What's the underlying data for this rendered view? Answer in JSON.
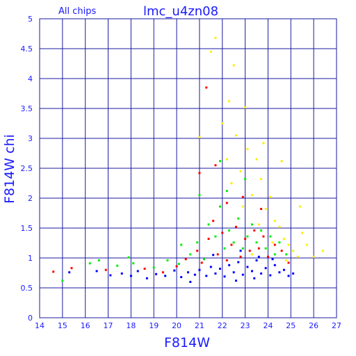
{
  "chart_data": {
    "type": "scatter",
    "title": "lmc_u4zn08",
    "subtitle": "All chips",
    "xlabel": "F814W",
    "ylabel": "F814W chi",
    "xlim": [
      14,
      27
    ],
    "ylim": [
      0,
      5
    ],
    "xticks": [
      "14",
      "15",
      "16",
      "17",
      "18",
      "19",
      "20",
      "21",
      "22",
      "23",
      "24",
      "25",
      "26",
      "27"
    ],
    "yticks": [
      "0",
      "0.5",
      "1",
      "1.5",
      "2",
      "2.5",
      "3",
      "3.5",
      "4",
      "4.5",
      "5"
    ],
    "grid": true,
    "series": [
      {
        "color": "#0000ff",
        "points": [
          [
            17.6,
            0.74
          ],
          [
            18.0,
            0.7
          ],
          [
            18.3,
            0.78
          ],
          [
            18.7,
            0.66
          ],
          [
            19.1,
            0.73
          ],
          [
            19.5,
            0.7
          ],
          [
            19.9,
            0.79
          ],
          [
            20.2,
            0.68
          ],
          [
            20.5,
            0.76
          ],
          [
            20.8,
            0.72
          ],
          [
            21.0,
            0.8
          ],
          [
            21.3,
            0.7
          ],
          [
            21.5,
            0.85
          ],
          [
            21.7,
            0.74
          ],
          [
            21.9,
            0.82
          ],
          [
            22.1,
            0.69
          ],
          [
            22.3,
            0.88
          ],
          [
            22.5,
            0.76
          ],
          [
            22.7,
            0.93
          ],
          [
            22.9,
            0.72
          ],
          [
            23.1,
            0.85
          ],
          [
            23.3,
            0.78
          ],
          [
            23.5,
            0.96
          ],
          [
            23.7,
            0.74
          ],
          [
            23.9,
            0.83
          ],
          [
            24.1,
            0.71
          ],
          [
            24.3,
            0.88
          ],
          [
            24.5,
            0.76
          ],
          [
            24.7,
            0.8
          ],
          [
            24.9,
            0.7
          ],
          [
            25.1,
            0.74
          ],
          [
            22.6,
            0.62
          ],
          [
            23.4,
            0.66
          ],
          [
            21.6,
            1.05
          ],
          [
            22.8,
            1.12
          ],
          [
            23.6,
            1.02
          ],
          [
            24.2,
            0.98
          ],
          [
            20.6,
            0.6
          ],
          [
            16.5,
            0.78
          ],
          [
            17.1,
            0.71
          ],
          [
            15.3,
            0.76
          ]
        ]
      },
      {
        "color": "#ff0000",
        "points": [
          [
            14.6,
            0.77
          ],
          [
            15.4,
            0.83
          ],
          [
            16.9,
            0.8
          ],
          [
            18.6,
            0.82
          ],
          [
            19.4,
            0.76
          ],
          [
            20.0,
            0.86
          ],
          [
            20.4,
            0.98
          ],
          [
            20.9,
            1.12
          ],
          [
            21.1,
            0.92
          ],
          [
            21.4,
            1.32
          ],
          [
            21.6,
            1.62
          ],
          [
            21.8,
            1.06
          ],
          [
            22.0,
            1.42
          ],
          [
            22.2,
            0.96
          ],
          [
            22.4,
            1.22
          ],
          [
            22.6,
            1.52
          ],
          [
            22.8,
            1.02
          ],
          [
            23.0,
            1.32
          ],
          [
            23.2,
            1.12
          ],
          [
            23.4,
            1.46
          ],
          [
            23.6,
            1.16
          ],
          [
            23.8,
            1.36
          ],
          [
            24.0,
            1.02
          ],
          [
            24.3,
            1.22
          ],
          [
            24.6,
            1.12
          ],
          [
            21.3,
            3.85
          ],
          [
            22.9,
            2.02
          ],
          [
            21.0,
            2.42
          ],
          [
            23.7,
            1.82
          ],
          [
            22.2,
            1.92
          ],
          [
            21.7,
            2.55
          ],
          [
            24.9,
            0.92
          ]
        ]
      },
      {
        "color": "#00ee00",
        "points": [
          [
            15.0,
            0.62
          ],
          [
            16.2,
            0.91
          ],
          [
            17.4,
            0.87
          ],
          [
            18.1,
            0.91
          ],
          [
            19.0,
            0.84
          ],
          [
            19.6,
            0.96
          ],
          [
            20.1,
            0.9
          ],
          [
            20.6,
            1.06
          ],
          [
            20.9,
            1.26
          ],
          [
            21.2,
            0.98
          ],
          [
            21.4,
            1.56
          ],
          [
            21.7,
            1.36
          ],
          [
            21.9,
            1.86
          ],
          [
            22.1,
            1.16
          ],
          [
            22.3,
            1.46
          ],
          [
            22.5,
            1.26
          ],
          [
            22.7,
            1.66
          ],
          [
            22.9,
            1.16
          ],
          [
            23.1,
            1.36
          ],
          [
            23.3,
            1.56
          ],
          [
            23.5,
            1.26
          ],
          [
            23.7,
            1.46
          ],
          [
            23.9,
            1.16
          ],
          [
            24.1,
            1.36
          ],
          [
            24.3,
            1.06
          ],
          [
            24.5,
            1.26
          ],
          [
            24.8,
            1.06
          ],
          [
            21.0,
            2.05
          ],
          [
            22.2,
            2.12
          ],
          [
            23.0,
            2.32
          ],
          [
            21.9,
            2.62
          ],
          [
            20.2,
            1.22
          ],
          [
            17.9,
            1.01
          ],
          [
            16.6,
            0.96
          ]
        ]
      },
      {
        "color": "#ffee00",
        "points": [
          [
            21.0,
            3.02
          ],
          [
            21.5,
            4.45
          ],
          [
            21.7,
            4.68
          ],
          [
            22.0,
            3.25
          ],
          [
            22.2,
            2.65
          ],
          [
            22.4,
            2.25
          ],
          [
            22.6,
            3.05
          ],
          [
            22.8,
            2.45
          ],
          [
            23.0,
            3.52
          ],
          [
            23.1,
            2.82
          ],
          [
            23.3,
            2.05
          ],
          [
            23.5,
            2.65
          ],
          [
            23.7,
            2.32
          ],
          [
            23.9,
            1.82
          ],
          [
            24.1,
            2.02
          ],
          [
            24.3,
            1.62
          ],
          [
            24.5,
            1.52
          ],
          [
            24.7,
            1.32
          ],
          [
            24.9,
            1.22
          ],
          [
            25.1,
            1.12
          ],
          [
            25.3,
            1.02
          ],
          [
            25.5,
            1.42
          ],
          [
            25.7,
            1.22
          ],
          [
            26.0,
            1.02
          ],
          [
            26.4,
            1.12
          ],
          [
            24.6,
            2.62
          ],
          [
            23.8,
            2.92
          ],
          [
            22.3,
            3.62
          ],
          [
            24.2,
            1.26
          ],
          [
            23.6,
            1.56
          ],
          [
            22.9,
            1.86
          ],
          [
            25.4,
            1.86
          ],
          [
            22.5,
            4.22
          ],
          [
            23.3,
            1.06
          ],
          [
            24.8,
            0.96
          ]
        ]
      }
    ]
  }
}
